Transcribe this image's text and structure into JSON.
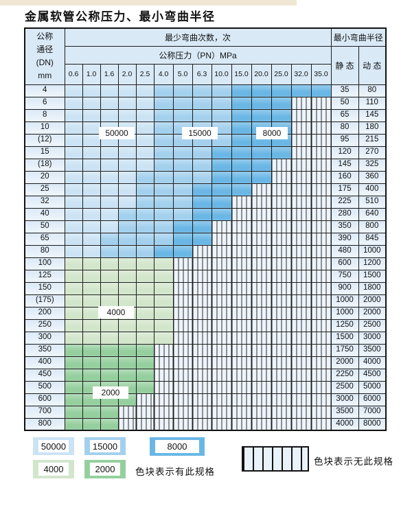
{
  "page": {
    "title": "金属软管公称压力、最小弯曲半径"
  },
  "colors": {
    "cycles_50000": "#cbe3f4",
    "cycles_15000": "#a3d0ed",
    "cycles_8000": "#6ab7e5",
    "cycles_4000": "#d2e6cb",
    "cycles_2000": "#95cf9e",
    "hatch_bg": "#edf4fb",
    "header_bg": "#d9e9f6",
    "grid_line": "#1c1c1c"
  },
  "table": {
    "header": {
      "dn_lines": [
        "公称",
        "通径",
        "(DN)",
        "mm"
      ],
      "bend_cycles_label": "最少弯曲次数，次",
      "pressure_label": "公称压力（PN）MPa",
      "radius_label": "最小弯曲半径",
      "static_label": "静 态",
      "dynamic_label": "动 态"
    },
    "pressures": [
      "0.6",
      "1.0",
      "1.6",
      "2.0",
      "2.5",
      "4.0",
      "5.0",
      "6.3",
      "10.0",
      "15.0",
      "20.0",
      "25.0",
      "32.0",
      "35.0"
    ],
    "region_labels": [
      {
        "text": "50000"
      },
      {
        "text": "15000"
      },
      {
        "text": "8000"
      },
      {
        "text": "4000"
      },
      {
        "text": "2000"
      }
    ],
    "cell_legend": {
      "A": "50000次",
      "B": "15000次",
      "C": "8000次",
      "D": "4000次",
      "E": "2000次",
      "X": "无此规格"
    },
    "rows": [
      {
        "dn": "4",
        "cells": "AAAAABBBBCCCCC",
        "static": "35",
        "dynamic": "80"
      },
      {
        "dn": "6",
        "cells": "AAAAABBBBCCCXX",
        "static": "50",
        "dynamic": "110"
      },
      {
        "dn": "8",
        "cells": "AAAAABBBBCCCXX",
        "static": "65",
        "dynamic": "145"
      },
      {
        "dn": "10",
        "cells": "AAAAABBBBCCCXX",
        "static": "80",
        "dynamic": "180"
      },
      {
        "dn": "(12)",
        "cells": "AAAAABBBBCCCXX",
        "static": "95",
        "dynamic": "215"
      },
      {
        "dn": "15",
        "cells": "AAAAABBBCCCCXX",
        "static": "120",
        "dynamic": "270"
      },
      {
        "dn": "(18)",
        "cells": "AAAAABBBCCCXXX",
        "static": "145",
        "dynamic": "325"
      },
      {
        "dn": "20",
        "cells": "AAAABBBBCCCXXX",
        "static": "160",
        "dynamic": "360"
      },
      {
        "dn": "25",
        "cells": "AAAABBBCCCXXXX",
        "static": "175",
        "dynamic": "400"
      },
      {
        "dn": "32",
        "cells": "AAAABBBCCXXXXX",
        "static": "225",
        "dynamic": "510"
      },
      {
        "dn": "40",
        "cells": "AAABBBBCCXXXXX",
        "static": "280",
        "dynamic": "640"
      },
      {
        "dn": "50",
        "cells": "AAABBBCCXXXXXX",
        "static": "350",
        "dynamic": "800"
      },
      {
        "dn": "65",
        "cells": "AABBBBCCXXXXXX",
        "static": "390",
        "dynamic": "845"
      },
      {
        "dn": "80",
        "cells": "AABBBCCXXXXXXX",
        "static": "480",
        "dynamic": "1000"
      },
      {
        "dn": "100",
        "cells": "DDDDDDXXXXXXXX",
        "static": "600",
        "dynamic": "1200"
      },
      {
        "dn": "125",
        "cells": "DDDDDDXXXXXXXX",
        "static": "750",
        "dynamic": "1500"
      },
      {
        "dn": "150",
        "cells": "DDDDDDXXXXXXXX",
        "static": "900",
        "dynamic": "1800"
      },
      {
        "dn": "(175)",
        "cells": "DDDDDDXXXXXXXX",
        "static": "1000",
        "dynamic": "2000"
      },
      {
        "dn": "200",
        "cells": "DDDDDDXXXXXXXX",
        "static": "1000",
        "dynamic": "2000"
      },
      {
        "dn": "250",
        "cells": "DDDDDDXXXXXXXX",
        "static": "1250",
        "dynamic": "2500"
      },
      {
        "dn": "300",
        "cells": "DDDDDDXXXXXXXX",
        "static": "1500",
        "dynamic": "3000"
      },
      {
        "dn": "350",
        "cells": "EEEEEXXXXXXXXX",
        "static": "1750",
        "dynamic": "3500"
      },
      {
        "dn": "400",
        "cells": "EEEEEXXXXXXXXX",
        "static": "2000",
        "dynamic": "4000"
      },
      {
        "dn": "450",
        "cells": "EEEEEXXXXXXXXX",
        "static": "2250",
        "dynamic": "4500"
      },
      {
        "dn": "500",
        "cells": "EEEEEXXXXXXXXX",
        "static": "2500",
        "dynamic": "5000"
      },
      {
        "dn": "600",
        "cells": "EEEEXXXXXXXXXX",
        "static": "3000",
        "dynamic": "6000"
      },
      {
        "dn": "700",
        "cells": "EEEXXXXXXXXXXX",
        "static": "3500",
        "dynamic": "7000"
      },
      {
        "dn": "800",
        "cells": "EEEXXXXXXXXXXX",
        "static": "4000",
        "dynamic": "8000"
      }
    ]
  },
  "legend": {
    "items": [
      {
        "label": "50000",
        "color_key": "cycles_50000"
      },
      {
        "label": "15000",
        "color_key": "cycles_15000"
      },
      {
        "label": "8000",
        "color_key": "cycles_8000"
      },
      {
        "label": "4000",
        "color_key": "cycles_4000"
      },
      {
        "label": "2000",
        "color_key": "cycles_2000"
      }
    ],
    "has_spec_text": "色块表示有此规格",
    "no_spec_text": "色块表示无此规格"
  }
}
